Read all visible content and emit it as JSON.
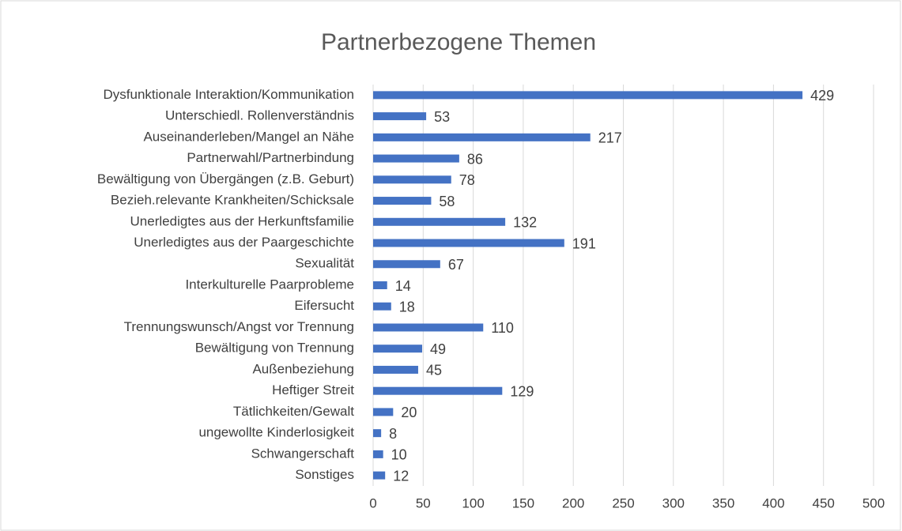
{
  "chart_data": {
    "type": "bar",
    "orientation": "horizontal",
    "title": "Partnerbezogene Themen",
    "categories": [
      "Dysfunktionale Interaktion/Kommunikation",
      "Unterschiedl. Rollenverständnis",
      "Auseinanderleben/Mangel an Nähe",
      "Partnerwahl/Partnerbindung",
      "Bewältigung von Übergängen (z.B. Geburt)",
      "Bezieh.relevante Krankheiten/Schicksale",
      "Unerledigtes aus der Herkunftsfamilie",
      "Unerledigtes aus der Paargeschichte",
      "Sexualität",
      "Interkulturelle Paarprobleme",
      "Eifersucht",
      "Trennungswunsch/Angst vor Trennung",
      "Bewältigung von Trennung",
      "Außenbeziehung",
      "Heftiger Streit",
      "Tätlichkeiten/Gewalt",
      "ungewollte Kinderlosigkeit",
      "Schwangerschaft",
      "Sonstiges"
    ],
    "values": [
      429,
      53,
      217,
      86,
      78,
      58,
      132,
      191,
      67,
      14,
      18,
      110,
      49,
      45,
      129,
      20,
      8,
      10,
      12
    ],
    "color": "#4472c4",
    "xlim": [
      0,
      500
    ],
    "xticks": [
      0,
      50,
      100,
      150,
      200,
      250,
      300,
      350,
      400,
      450,
      500
    ],
    "grid": true
  }
}
